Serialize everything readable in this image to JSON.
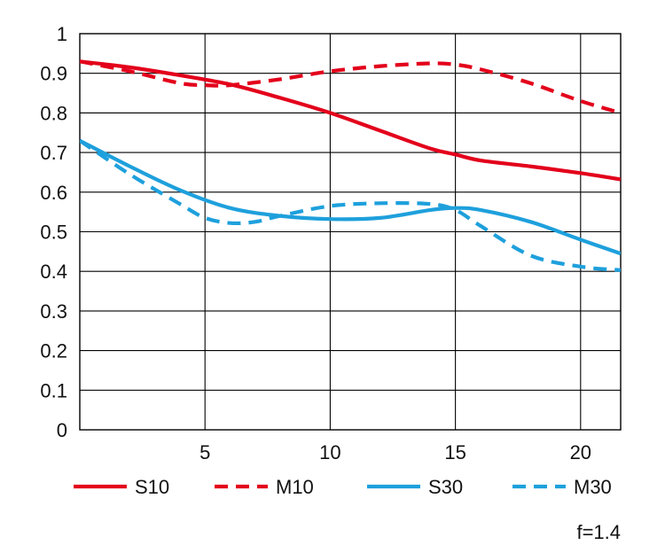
{
  "chart_data": {
    "type": "line",
    "xlim": [
      0,
      21.6
    ],
    "ylim": [
      0,
      1
    ],
    "x_ticks": [
      {
        "value": 5,
        "label": "5"
      },
      {
        "value": 10,
        "label": "10"
      },
      {
        "value": 15,
        "label": "15"
      },
      {
        "value": 20,
        "label": "20"
      }
    ],
    "y_ticks": [
      {
        "value": 0,
        "label": "0"
      },
      {
        "value": 0.1,
        "label": "0.1"
      },
      {
        "value": 0.2,
        "label": "0.2"
      },
      {
        "value": 0.3,
        "label": "0.3"
      },
      {
        "value": 0.4,
        "label": "0.4"
      },
      {
        "value": 0.5,
        "label": "0.5"
      },
      {
        "value": 0.6,
        "label": "0.6"
      },
      {
        "value": 0.7,
        "label": "0.7"
      },
      {
        "value": 0.8,
        "label": "0.8"
      },
      {
        "value": 0.9,
        "label": "0.9"
      },
      {
        "value": 1,
        "label": "1"
      }
    ],
    "grid": true,
    "legend_position": "bottom",
    "annotation": "f=1.4",
    "series": [
      {
        "name": "S10",
        "color": "#e3001b",
        "dash": "solid",
        "points": [
          [
            0,
            0.93
          ],
          [
            2,
            0.915
          ],
          [
            4,
            0.895
          ],
          [
            6,
            0.872
          ],
          [
            8,
            0.838
          ],
          [
            10,
            0.8
          ],
          [
            12,
            0.755
          ],
          [
            14,
            0.71
          ],
          [
            15,
            0.695
          ],
          [
            16,
            0.68
          ],
          [
            18,
            0.665
          ],
          [
            20,
            0.648
          ],
          [
            21.6,
            0.632
          ]
        ]
      },
      {
        "name": "M10",
        "color": "#e3001b",
        "dash": "dashed",
        "points": [
          [
            0,
            0.93
          ],
          [
            2,
            0.905
          ],
          [
            4,
            0.875
          ],
          [
            5,
            0.87
          ],
          [
            6,
            0.87
          ],
          [
            8,
            0.885
          ],
          [
            10,
            0.905
          ],
          [
            12,
            0.918
          ],
          [
            14,
            0.925
          ],
          [
            15,
            0.922
          ],
          [
            16,
            0.91
          ],
          [
            18,
            0.875
          ],
          [
            20,
            0.83
          ],
          [
            21.6,
            0.8
          ]
        ]
      },
      {
        "name": "S30",
        "color": "#1ea0dc",
        "dash": "solid",
        "points": [
          [
            0,
            0.73
          ],
          [
            2,
            0.665
          ],
          [
            4,
            0.605
          ],
          [
            6,
            0.56
          ],
          [
            8,
            0.54
          ],
          [
            10,
            0.532
          ],
          [
            12,
            0.535
          ],
          [
            14,
            0.555
          ],
          [
            15,
            0.56
          ],
          [
            16,
            0.555
          ],
          [
            18,
            0.525
          ],
          [
            20,
            0.48
          ],
          [
            21.6,
            0.445
          ]
        ]
      },
      {
        "name": "M30",
        "color": "#1ea0dc",
        "dash": "dashed",
        "points": [
          [
            0,
            0.73
          ],
          [
            2,
            0.645
          ],
          [
            4,
            0.57
          ],
          [
            5,
            0.535
          ],
          [
            6,
            0.522
          ],
          [
            7,
            0.525
          ],
          [
            8,
            0.54
          ],
          [
            10,
            0.565
          ],
          [
            12,
            0.572
          ],
          [
            14,
            0.57
          ],
          [
            15,
            0.555
          ],
          [
            16,
            0.515
          ],
          [
            18,
            0.44
          ],
          [
            20,
            0.412
          ],
          [
            21.6,
            0.403
          ]
        ]
      }
    ]
  }
}
